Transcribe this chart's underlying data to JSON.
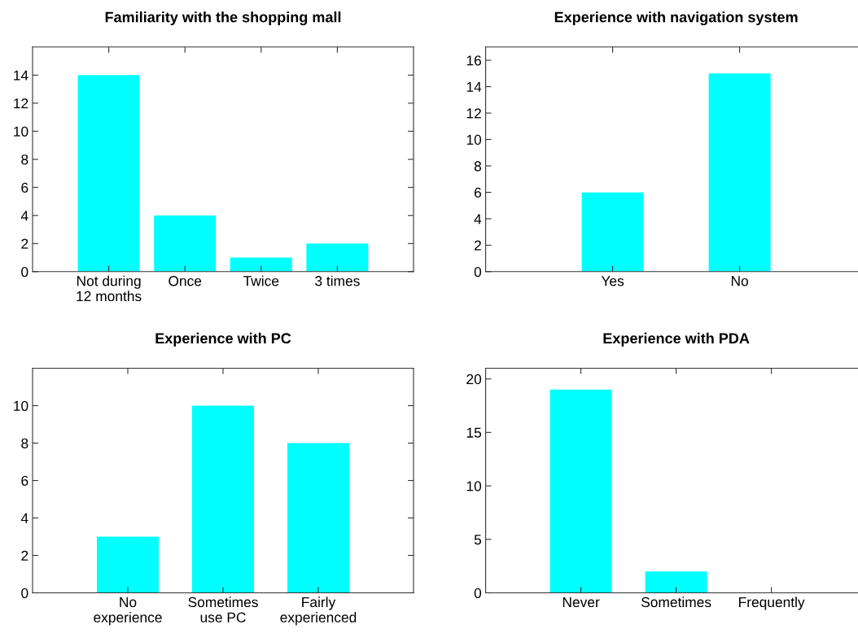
{
  "chart_data": [
    {
      "type": "bar",
      "title": "Familiarity with the shopping mall",
      "categories": [
        "Not during\n12 months",
        "Once",
        "Twice",
        "3 times"
      ],
      "values": [
        14,
        4,
        1,
        2
      ],
      "color": "#00ffff",
      "ylim": [
        0,
        16
      ],
      "yticks": [
        0,
        2,
        4,
        6,
        8,
        10,
        12,
        14
      ]
    },
    {
      "type": "bar",
      "title": "Experience with navigation system",
      "categories": [
        "Yes",
        "No"
      ],
      "values": [
        6,
        15
      ],
      "color": "#00ffff",
      "ylim": [
        0,
        17
      ],
      "yticks": [
        0,
        2,
        4,
        6,
        8,
        10,
        12,
        14,
        16
      ]
    },
    {
      "type": "bar",
      "title": "Experience with PC",
      "categories": [
        "No\nexperience",
        "Sometimes\nuse PC",
        "Fairly\nexperienced"
      ],
      "values": [
        3,
        10,
        8
      ],
      "color": "#00ffff",
      "ylim": [
        0,
        12
      ],
      "yticks": [
        0,
        2,
        4,
        6,
        8,
        10
      ]
    },
    {
      "type": "bar",
      "title": "Experience with PDA",
      "categories": [
        "Never",
        "Sometimes",
        "Frequently"
      ],
      "values": [
        19,
        2,
        0
      ],
      "color": "#00ffff",
      "ylim": [
        0,
        21
      ],
      "yticks": [
        0,
        5,
        10,
        15,
        20
      ]
    }
  ]
}
